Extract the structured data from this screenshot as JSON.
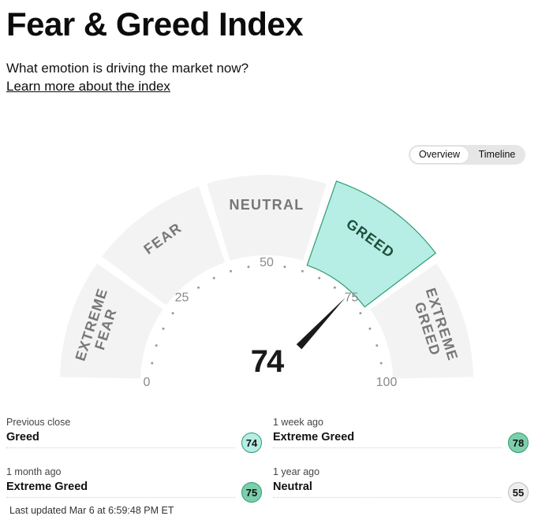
{
  "header": {
    "title": "Fear & Greed Index",
    "subtitle": "What emotion is driving the market now?",
    "learn_more": "Learn more about the index"
  },
  "toggle": {
    "options": [
      "Overview",
      "Timeline"
    ],
    "selected": "Overview"
  },
  "gauge": {
    "score": "74",
    "value": 74,
    "segments": [
      "EXTREME FEAR",
      "FEAR",
      "NEUTRAL",
      "GREED",
      "EXTREME GREED"
    ],
    "active_segment": "GREED",
    "tick_labels": [
      "0",
      "25",
      "50",
      "75",
      "100"
    ],
    "colors": {
      "active_fill": "#b6ede4",
      "active_stroke": "#2f9b71",
      "segment_fill": "#f3f3f3",
      "needle": "#1a1a1a"
    }
  },
  "history": [
    {
      "label": "Previous close",
      "value": "Greed",
      "score": "74",
      "color": "#b6ede4"
    },
    {
      "label": "1 week ago",
      "value": "Extreme Greed",
      "score": "78",
      "color": "#7ccfab"
    },
    {
      "label": "1 month ago",
      "value": "Extreme Greed",
      "score": "75",
      "color": "#7ccfab"
    },
    {
      "label": "1 year ago",
      "value": "Neutral",
      "score": "55",
      "color": "#eeeeee"
    }
  ],
  "footer": {
    "last_updated": "Last updated Mar 6 at 6:59:48 PM ET"
  }
}
